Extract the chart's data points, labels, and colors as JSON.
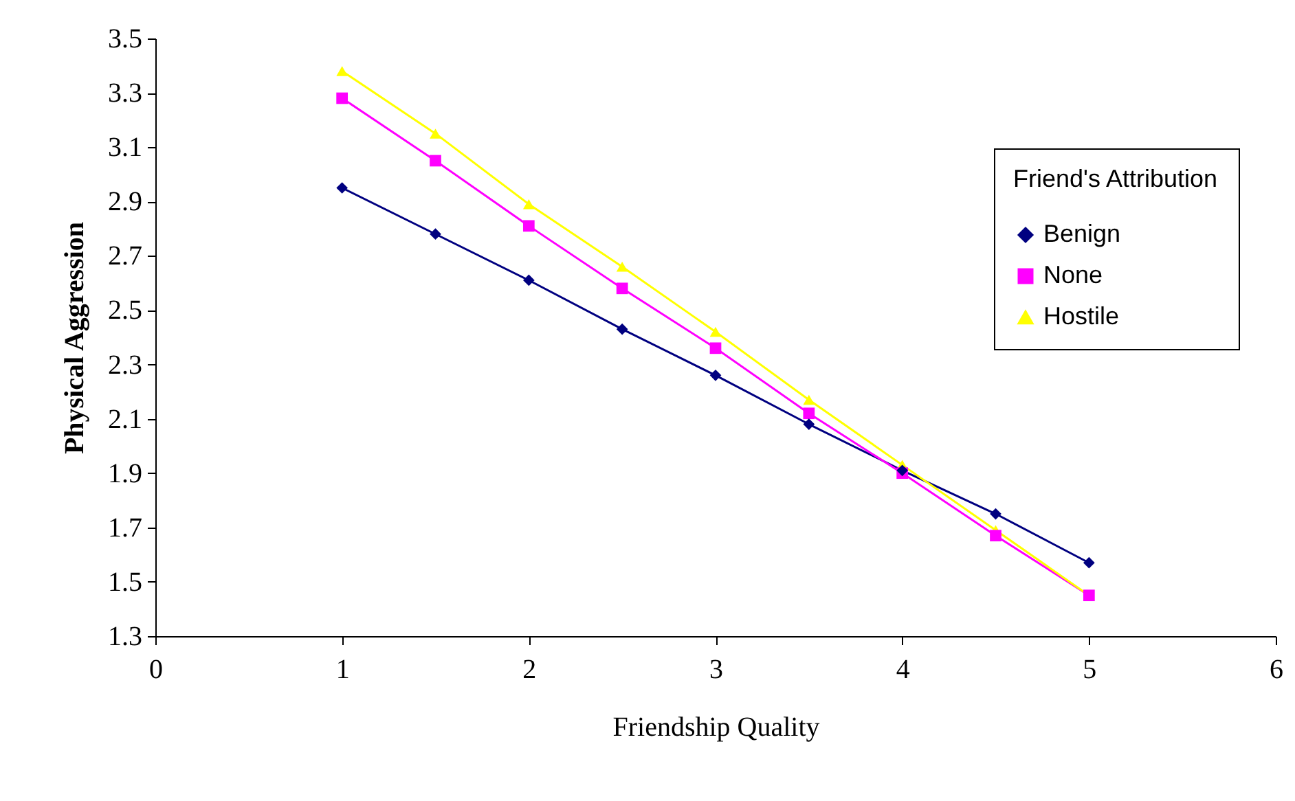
{
  "chart_data": {
    "type": "line",
    "xlabel": "Friendship Quality",
    "ylabel": "Physical Aggression",
    "legend_title": "Friend's Attribution",
    "x": [
      1,
      1.5,
      2,
      2.5,
      3,
      3.5,
      4,
      4.5,
      5
    ],
    "series": [
      {
        "name": "Benign",
        "color": "#000080",
        "marker": "diamond",
        "values": [
          2.95,
          2.78,
          2.61,
          2.43,
          2.26,
          2.08,
          1.91,
          1.75,
          1.57
        ]
      },
      {
        "name": "None",
        "color": "#ff00ff",
        "marker": "square",
        "values": [
          3.28,
          3.05,
          2.81,
          2.58,
          2.36,
          2.12,
          1.9,
          1.67,
          1.45
        ]
      },
      {
        "name": "Hostile",
        "color": "#ffff00",
        "marker": "triangle",
        "values": [
          3.38,
          3.15,
          2.89,
          2.66,
          2.42,
          2.17,
          1.93,
          1.69,
          1.45
        ]
      }
    ],
    "xlim": [
      0,
      6
    ],
    "xticks": [
      0,
      1,
      2,
      3,
      4,
      5,
      6
    ],
    "ylim": [
      1.3,
      3.5
    ],
    "yticks": [
      1.3,
      1.5,
      1.7,
      1.9,
      2.1,
      2.3,
      2.5,
      2.7,
      2.9,
      3.1,
      3.3,
      3.5
    ],
    "grid": false,
    "legend": "top right",
    "line_style": "solid"
  }
}
